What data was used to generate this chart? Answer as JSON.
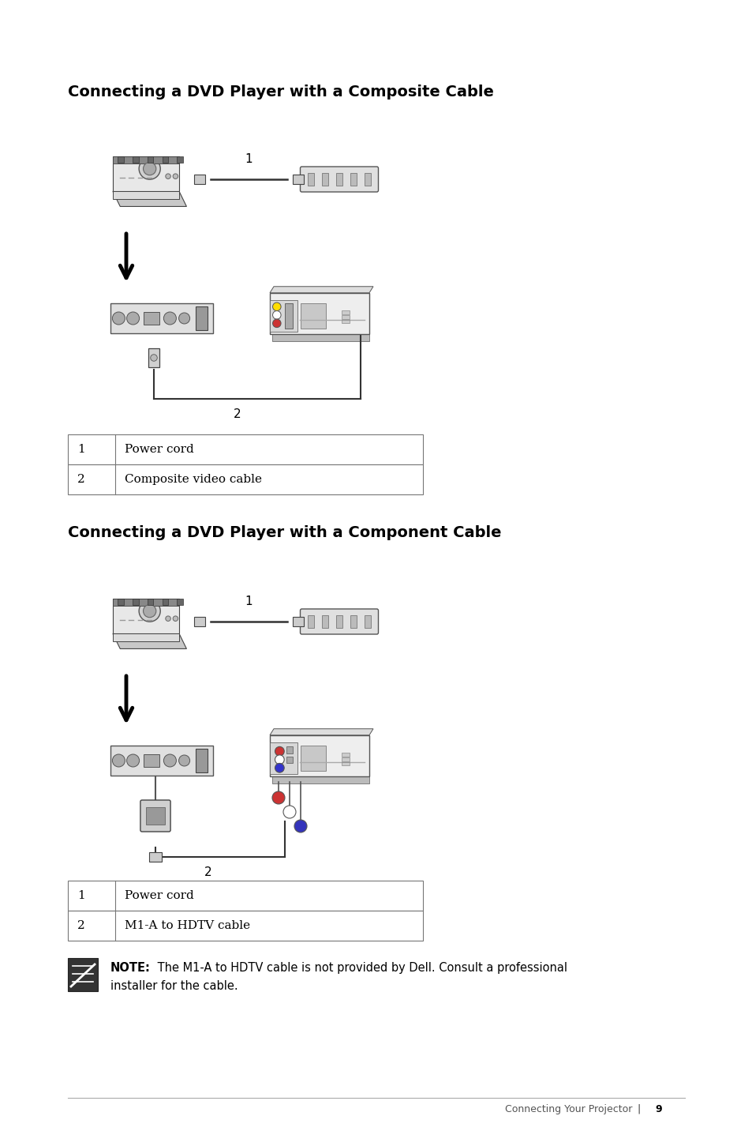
{
  "bg_color": "#ffffff",
  "title1": "Connecting a DVD Player with a Composite Cable",
  "title2": "Connecting a DVD Player with a Component Cable",
  "table1": [
    [
      "1",
      "Power cord"
    ],
    [
      "2",
      "Composite video cable"
    ]
  ],
  "table2": [
    [
      "1",
      "Power cord"
    ],
    [
      "2",
      "M1-A to HDTV cable"
    ]
  ],
  "note_bold": "NOTE:",
  "note_rest": " The M1-A to HDTV cable is not provided by Dell. Consult a professional",
  "note_line2": "installer for the cable.",
  "footer_text": "Connecting Your Projector",
  "page_num": "9",
  "fig_w": 9.54,
  "fig_h": 14.32,
  "dpi": 100,
  "title_fontsize": 14,
  "body_fontsize": 11,
  "note_fontsize": 10.5
}
